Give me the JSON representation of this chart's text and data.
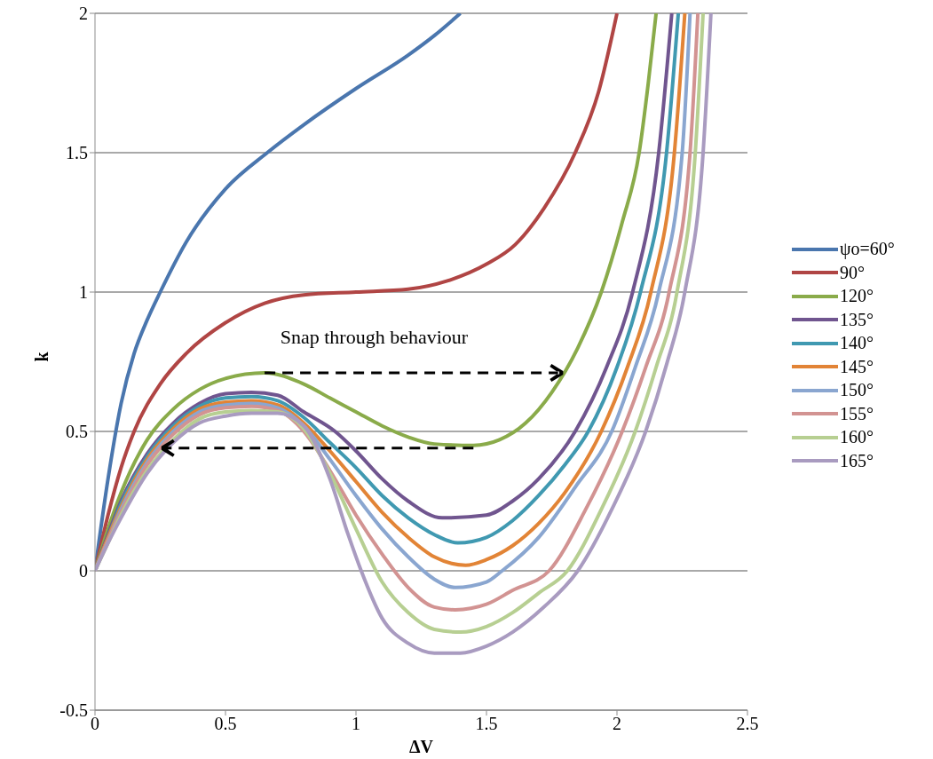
{
  "chart_data": {
    "type": "line",
    "xlabel": "ΔV",
    "ylabel": "k",
    "xlim": [
      0,
      2.5
    ],
    "xticks": [
      0,
      0.5,
      1,
      1.5,
      2,
      2.5
    ],
    "ylim": [
      -0.5,
      2
    ],
    "yticks": [
      -0.5,
      0,
      0.5,
      1,
      1.5,
      2
    ],
    "grid": "y",
    "legend": "right",
    "marker": "none",
    "line_style": "solid",
    "annotations": [
      "Snap through behaviour"
    ],
    "series": [
      {
        "name": "ψo=60°",
        "color": "#4a76ae",
        "x": [
          0,
          0.05,
          0.1,
          0.15,
          0.2,
          0.25,
          0.35,
          0.5,
          0.66,
          0.8,
          1.0,
          1.2,
          1.3,
          1.4
        ],
        "values": [
          0,
          0.33,
          0.6,
          0.78,
          0.9,
          1.0,
          1.18,
          1.37,
          1.5,
          1.6,
          1.73,
          1.85,
          1.92,
          2.0
        ]
      },
      {
        "name": "90°",
        "color": "#b04544",
        "x": [
          0,
          0.05,
          0.1,
          0.15,
          0.25,
          0.35,
          0.5,
          0.65,
          0.8,
          1.0,
          1.2,
          1.35,
          1.5,
          1.61,
          1.72,
          1.84,
          1.93,
          2.0
        ],
        "values": [
          0,
          0.2,
          0.37,
          0.5,
          0.67,
          0.78,
          0.89,
          0.96,
          0.99,
          1.0,
          1.01,
          1.04,
          1.1,
          1.17,
          1.3,
          1.5,
          1.72,
          2.0
        ]
      },
      {
        "name": "120°",
        "color": "#8aab4a",
        "x": [
          0,
          0.05,
          0.1,
          0.2,
          0.3,
          0.4,
          0.5,
          0.65,
          0.8,
          0.9,
          1.0,
          1.1,
          1.2,
          1.3,
          1.45,
          1.55,
          1.65,
          1.75,
          1.85,
          1.94,
          2.02,
          2.085,
          2.12,
          2.15
        ],
        "values": [
          0,
          0.15,
          0.28,
          0.47,
          0.58,
          0.65,
          0.69,
          0.71,
          0.67,
          0.62,
          0.57,
          0.52,
          0.48,
          0.455,
          0.45,
          0.47,
          0.53,
          0.64,
          0.8,
          1.0,
          1.25,
          1.5,
          1.75,
          2.0
        ]
      },
      {
        "name": "135°",
        "color": "#70558f",
        "x": [
          0,
          0.05,
          0.1,
          0.2,
          0.3,
          0.4,
          0.5,
          0.6,
          0.7,
          0.8,
          0.92,
          1.0,
          1.1,
          1.2,
          1.33,
          1.5,
          1.6,
          1.7,
          1.84,
          1.96,
          2.06,
          2.16,
          2.21
        ],
        "values": [
          0,
          0.13,
          0.25,
          0.42,
          0.53,
          0.6,
          0.635,
          0.64,
          0.63,
          0.57,
          0.5,
          0.43,
          0.33,
          0.25,
          0.19,
          0.2,
          0.25,
          0.33,
          0.5,
          0.73,
          1.0,
          1.5,
          2.0
        ]
      },
      {
        "name": "140°",
        "color": "#4099b1",
        "x": [
          0,
          0.05,
          0.1,
          0.2,
          0.3,
          0.4,
          0.5,
          0.6,
          0.7,
          0.8,
          0.9,
          1.0,
          1.1,
          1.2,
          1.3,
          1.39,
          1.5,
          1.6,
          1.7,
          1.8,
          1.89,
          2.0,
          2.09,
          2.19,
          2.235
        ],
        "values": [
          0,
          0.12,
          0.24,
          0.41,
          0.52,
          0.59,
          0.62,
          0.625,
          0.61,
          0.55,
          0.46,
          0.37,
          0.27,
          0.19,
          0.13,
          0.1,
          0.12,
          0.18,
          0.27,
          0.38,
          0.5,
          0.73,
          1.0,
          1.5,
          2.0
        ]
      },
      {
        "name": "145°",
        "color": "#e28436",
        "x": [
          0,
          0.05,
          0.1,
          0.2,
          0.3,
          0.4,
          0.5,
          0.6,
          0.7,
          0.8,
          0.9,
          1.0,
          1.1,
          1.2,
          1.3,
          1.42,
          1.5,
          1.6,
          1.7,
          1.8,
          1.94,
          2.04,
          2.13,
          2.22,
          2.26
        ],
        "values": [
          0,
          0.12,
          0.23,
          0.4,
          0.51,
          0.58,
          0.605,
          0.61,
          0.595,
          0.53,
          0.43,
          0.32,
          0.21,
          0.12,
          0.05,
          0.02,
          0.04,
          0.09,
          0.17,
          0.28,
          0.5,
          0.73,
          1.0,
          1.5,
          2.0
        ]
      },
      {
        "name": "150°",
        "color": "#8aa6d0",
        "x": [
          0,
          0.05,
          0.1,
          0.2,
          0.3,
          0.4,
          0.5,
          0.6,
          0.7,
          0.8,
          0.9,
          1.0,
          1.1,
          1.2,
          1.3,
          1.38,
          1.5,
          1.56,
          1.7,
          1.84,
          1.98,
          2.07,
          2.16,
          2.25,
          2.28
        ],
        "values": [
          0,
          0.11,
          0.22,
          0.39,
          0.5,
          0.57,
          0.595,
          0.6,
          0.585,
          0.52,
          0.4,
          0.27,
          0.15,
          0.05,
          -0.03,
          -0.06,
          -0.04,
          0,
          0.12,
          0.3,
          0.5,
          0.73,
          1.0,
          1.5,
          2.0
        ]
      },
      {
        "name": "155°",
        "color": "#d29392",
        "x": [
          0,
          0.05,
          0.1,
          0.2,
          0.3,
          0.4,
          0.5,
          0.6,
          0.7,
          0.8,
          0.9,
          1.0,
          1.1,
          1.2,
          1.3,
          1.38,
          1.5,
          1.6,
          1.74,
          1.88,
          2.02,
          2.11,
          2.2,
          2.28,
          2.31
        ],
        "values": [
          0,
          0.11,
          0.21,
          0.38,
          0.49,
          0.56,
          0.585,
          0.59,
          0.575,
          0.5,
          0.36,
          0.2,
          0.06,
          -0.06,
          -0.13,
          -0.14,
          -0.12,
          -0.07,
          0,
          0.22,
          0.5,
          0.73,
          1.0,
          1.5,
          2.0
        ]
      },
      {
        "name": "160°",
        "color": "#b7cf92",
        "x": [
          0,
          0.05,
          0.1,
          0.2,
          0.3,
          0.4,
          0.5,
          0.6,
          0.7,
          0.8,
          0.9,
          1.0,
          1.1,
          1.2,
          1.3,
          1.4,
          1.5,
          1.6,
          1.7,
          1.81,
          1.94,
          2.07,
          2.15,
          2.23,
          2.3,
          2.33
        ],
        "values": [
          0,
          0.1,
          0.2,
          0.36,
          0.47,
          0.545,
          0.57,
          0.575,
          0.57,
          0.51,
          0.35,
          0.15,
          -0.04,
          -0.15,
          -0.21,
          -0.22,
          -0.2,
          -0.15,
          -0.08,
          0,
          0.22,
          0.5,
          0.73,
          1.0,
          1.5,
          2.0
        ]
      },
      {
        "name": "165°",
        "color": "#a99bc0",
        "x": [
          0,
          0.05,
          0.1,
          0.2,
          0.3,
          0.4,
          0.5,
          0.6,
          0.7,
          0.8,
          0.9,
          0.97,
          1.02,
          1.1,
          1.2,
          1.3,
          1.4,
          1.5,
          1.6,
          1.72,
          1.85,
          1.98,
          2.11,
          2.19,
          2.26,
          2.33,
          2.36
        ],
        "values": [
          0,
          0.1,
          0.19,
          0.35,
          0.46,
          0.53,
          0.555,
          0.565,
          0.565,
          0.52,
          0.33,
          0.13,
          0,
          -0.17,
          -0.26,
          -0.295,
          -0.295,
          -0.27,
          -0.22,
          -0.13,
          0,
          0.22,
          0.5,
          0.74,
          1.0,
          1.5,
          2.0
        ]
      }
    ]
  }
}
